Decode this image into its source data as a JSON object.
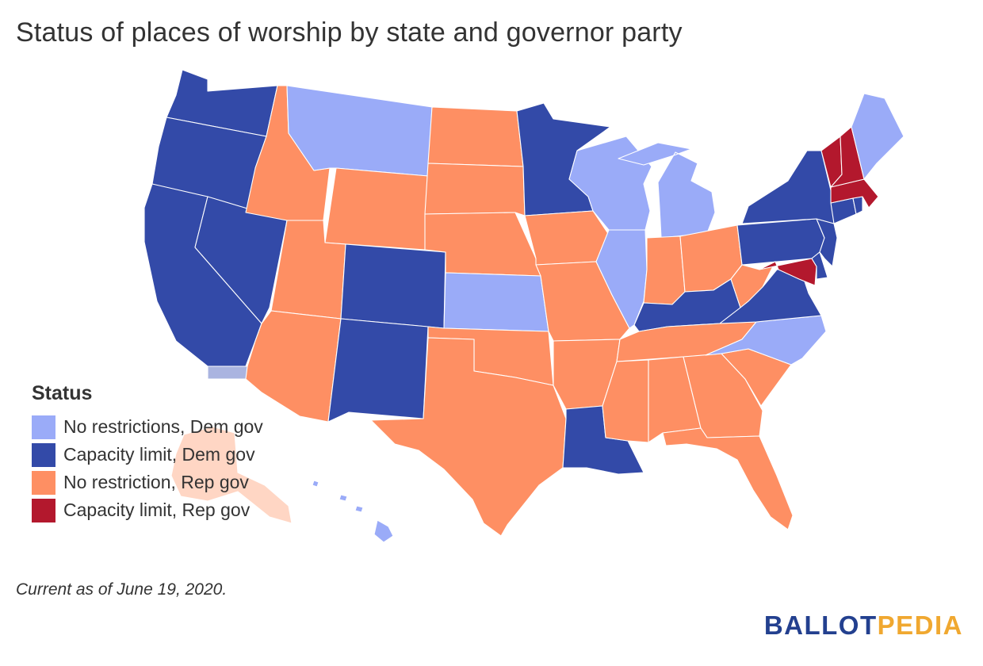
{
  "title": "Status of places of worship by state and governor party",
  "legend": {
    "title": "Status",
    "items": [
      {
        "key": "nr_dem",
        "label": "No restrictions, Dem gov",
        "color": "#9aabf8"
      },
      {
        "key": "cl_dem",
        "label": "Capacity limit, Dem gov",
        "color": "#334aa8"
      },
      {
        "key": "nr_rep",
        "label": "No restriction, Rep gov",
        "color": "#fe8f63"
      },
      {
        "key": "cl_rep",
        "label": "Capacity limit, Rep gov",
        "color": "#b3182d"
      }
    ]
  },
  "note": "Current as of June 19, 2020.",
  "brand": {
    "part1": "BALLOT",
    "part2": "PEDIA",
    "color1": "#23408f",
    "color2": "#f0a830"
  },
  "map_colors": {
    "nr_dem": "#9aabf8",
    "cl_dem": "#334aa8",
    "nr_rep": "#fe8f63",
    "cl_rep": "#b3182d",
    "faded_orange": "#ffd6c4",
    "faded_blue": "#aab4e0"
  },
  "states": [
    {
      "id": "WA",
      "status": "cl_dem"
    },
    {
      "id": "OR",
      "status": "cl_dem"
    },
    {
      "id": "CA",
      "status": "cl_dem"
    },
    {
      "id": "NV",
      "status": "cl_dem"
    },
    {
      "id": "ID",
      "status": "nr_rep"
    },
    {
      "id": "MT",
      "status": "nr_dem"
    },
    {
      "id": "WY",
      "status": "nr_rep"
    },
    {
      "id": "UT",
      "status": "nr_rep"
    },
    {
      "id": "AZ",
      "status": "nr_rep"
    },
    {
      "id": "CO",
      "status": "cl_dem"
    },
    {
      "id": "NM",
      "status": "cl_dem"
    },
    {
      "id": "ND",
      "status": "nr_rep"
    },
    {
      "id": "SD",
      "status": "nr_rep"
    },
    {
      "id": "NE",
      "status": "nr_rep"
    },
    {
      "id": "KS",
      "status": "nr_dem"
    },
    {
      "id": "OK",
      "status": "nr_rep"
    },
    {
      "id": "TX",
      "status": "nr_rep"
    },
    {
      "id": "MN",
      "status": "cl_dem"
    },
    {
      "id": "IA",
      "status": "nr_rep"
    },
    {
      "id": "MO",
      "status": "nr_rep"
    },
    {
      "id": "AR",
      "status": "nr_rep"
    },
    {
      "id": "LA",
      "status": "cl_dem"
    },
    {
      "id": "WI",
      "status": "nr_dem"
    },
    {
      "id": "IL",
      "status": "nr_dem"
    },
    {
      "id": "MI",
      "status": "nr_dem"
    },
    {
      "id": "IN",
      "status": "nr_rep"
    },
    {
      "id": "OH",
      "status": "nr_rep"
    },
    {
      "id": "KY",
      "status": "cl_dem"
    },
    {
      "id": "TN",
      "status": "nr_rep"
    },
    {
      "id": "MS",
      "status": "nr_rep"
    },
    {
      "id": "AL",
      "status": "nr_rep"
    },
    {
      "id": "GA",
      "status": "nr_rep"
    },
    {
      "id": "FL",
      "status": "nr_rep"
    },
    {
      "id": "SC",
      "status": "nr_rep"
    },
    {
      "id": "NC",
      "status": "nr_dem"
    },
    {
      "id": "VA",
      "status": "cl_dem"
    },
    {
      "id": "WV",
      "status": "nr_rep"
    },
    {
      "id": "PA",
      "status": "cl_dem"
    },
    {
      "id": "NY",
      "status": "cl_dem"
    },
    {
      "id": "NJ",
      "status": "cl_dem"
    },
    {
      "id": "DE",
      "status": "cl_dem"
    },
    {
      "id": "MD",
      "status": "cl_rep"
    },
    {
      "id": "CT",
      "status": "cl_dem"
    },
    {
      "id": "RI",
      "status": "cl_dem"
    },
    {
      "id": "MA",
      "status": "cl_rep"
    },
    {
      "id": "VT",
      "status": "cl_rep"
    },
    {
      "id": "NH",
      "status": "cl_rep"
    },
    {
      "id": "ME",
      "status": "nr_dem"
    },
    {
      "id": "HI",
      "status": "nr_dem"
    },
    {
      "id": "AK",
      "status": "nr_rep"
    }
  ]
}
